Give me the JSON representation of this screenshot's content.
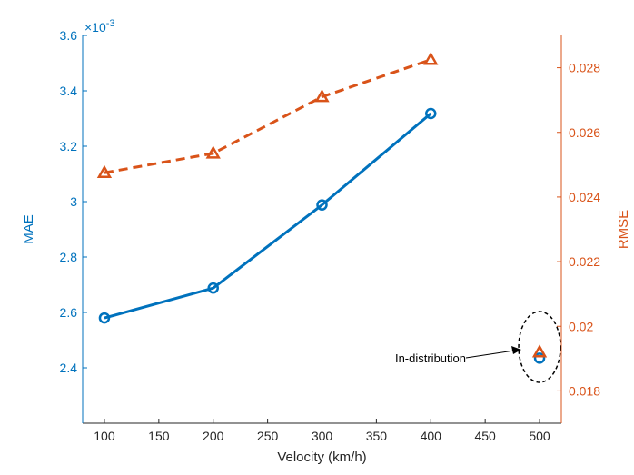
{
  "chart_data": {
    "type": "line",
    "x": [
      100,
      200,
      300,
      400
    ],
    "xlabel": "Velocity (km/h)",
    "xlim": [
      80,
      520
    ],
    "xticks": [
      "100",
      "150",
      "200",
      "250",
      "300",
      "350",
      "400",
      "450",
      "500"
    ],
    "left_axis": {
      "label": "MAE",
      "color": "#0072BD",
      "lim": [
        2.2,
        3.6
      ],
      "ticks": [
        "2.4",
        "2.6",
        "2.8",
        "3",
        "3.2",
        "3.4",
        "3.6"
      ],
      "exponent_label": "×10",
      "exponent_power": "-3"
    },
    "right_axis": {
      "label": "RMSE",
      "color": "#D95319",
      "lim": [
        0.017,
        0.029
      ],
      "ticks": [
        "0.018",
        "0.02",
        "0.022",
        "0.024",
        "0.026",
        "0.028"
      ]
    },
    "series": [
      {
        "name": "MAE",
        "axis": "left",
        "style": "solid",
        "marker": "circle",
        "color": "#0072BD",
        "values": [
          2.58,
          2.688,
          2.988,
          3.318
        ],
        "extra_point": {
          "x": 500,
          "y": 2.435
        }
      },
      {
        "name": "RMSE",
        "axis": "right",
        "style": "dashed",
        "marker": "triangle",
        "color": "#D95319",
        "values": [
          0.02475,
          0.02535,
          0.0271,
          0.02825
        ],
        "extra_point": {
          "x": 500,
          "y": 0.0192
        }
      }
    ],
    "annotation": {
      "text": "In-distribution",
      "target_x": 500
    }
  }
}
